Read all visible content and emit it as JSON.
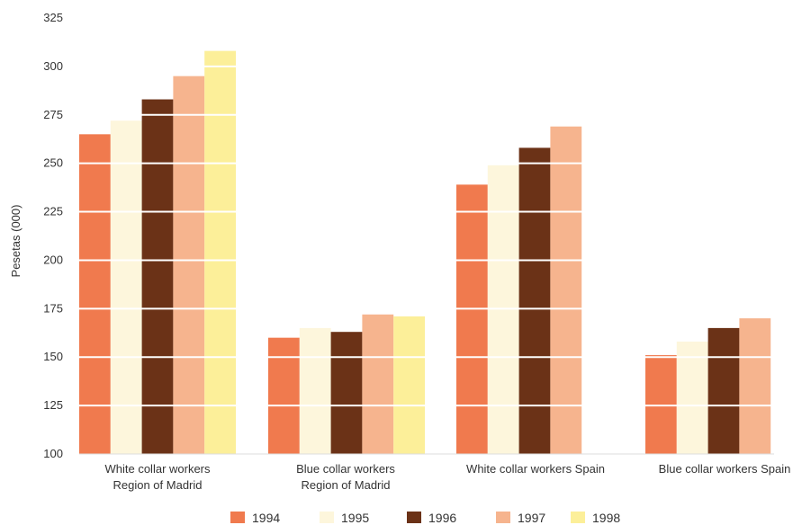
{
  "chart_data": {
    "type": "bar",
    "title": "",
    "xlabel": "",
    "ylabel": "Pesetas (000)",
    "ylim": [
      100,
      325
    ],
    "yticks": [
      100,
      125,
      150,
      175,
      200,
      225,
      250,
      275,
      300,
      325
    ],
    "grid": "horizontal white lines over bars",
    "legend_position": "bottom",
    "categories": [
      [
        "White collar workers",
        "Region of Madrid"
      ],
      [
        "Blue collar workers",
        "Region of Madrid"
      ],
      [
        "White collar workers Spain"
      ],
      [
        "Blue collar workers Spain"
      ]
    ],
    "series": [
      {
        "name": "1994",
        "color": "#f07a4e",
        "values": [
          265,
          160,
          239,
          151
        ]
      },
      {
        "name": "1995",
        "color": "#fdf6dc",
        "values": [
          272,
          165,
          249,
          158
        ]
      },
      {
        "name": "1996",
        "color": "#6b3217",
        "values": [
          283,
          163,
          258,
          165
        ]
      },
      {
        "name": "1997",
        "color": "#f6b48e",
        "values": [
          295,
          172,
          269,
          170
        ]
      },
      {
        "name": "1998",
        "color": "#fcef99",
        "values": [
          308,
          171,
          null,
          null
        ]
      }
    ]
  }
}
